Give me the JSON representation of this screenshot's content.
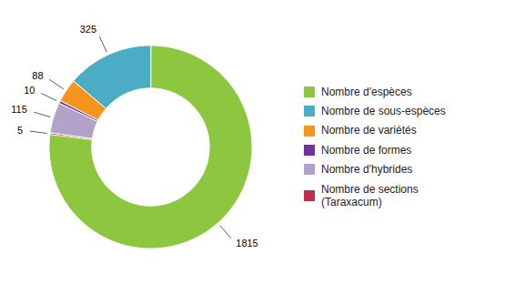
{
  "chart_data": {
    "type": "donut",
    "categories": [
      "Nombre d'espèces",
      "Nombre de sous-espèces",
      "Nombre de variétés",
      "Nombre de formes",
      "Nombre d'hybrides",
      "Nombre de sections\n(Taraxacum)"
    ],
    "values": [
      1815,
      325,
      88,
      10,
      115,
      5
    ],
    "colors": [
      "#8dc63f",
      "#4bacc6",
      "#f7941d",
      "#7030a0",
      "#b3a2c7",
      "#c0304d"
    ],
    "data_labels": true,
    "legend": "right"
  }
}
